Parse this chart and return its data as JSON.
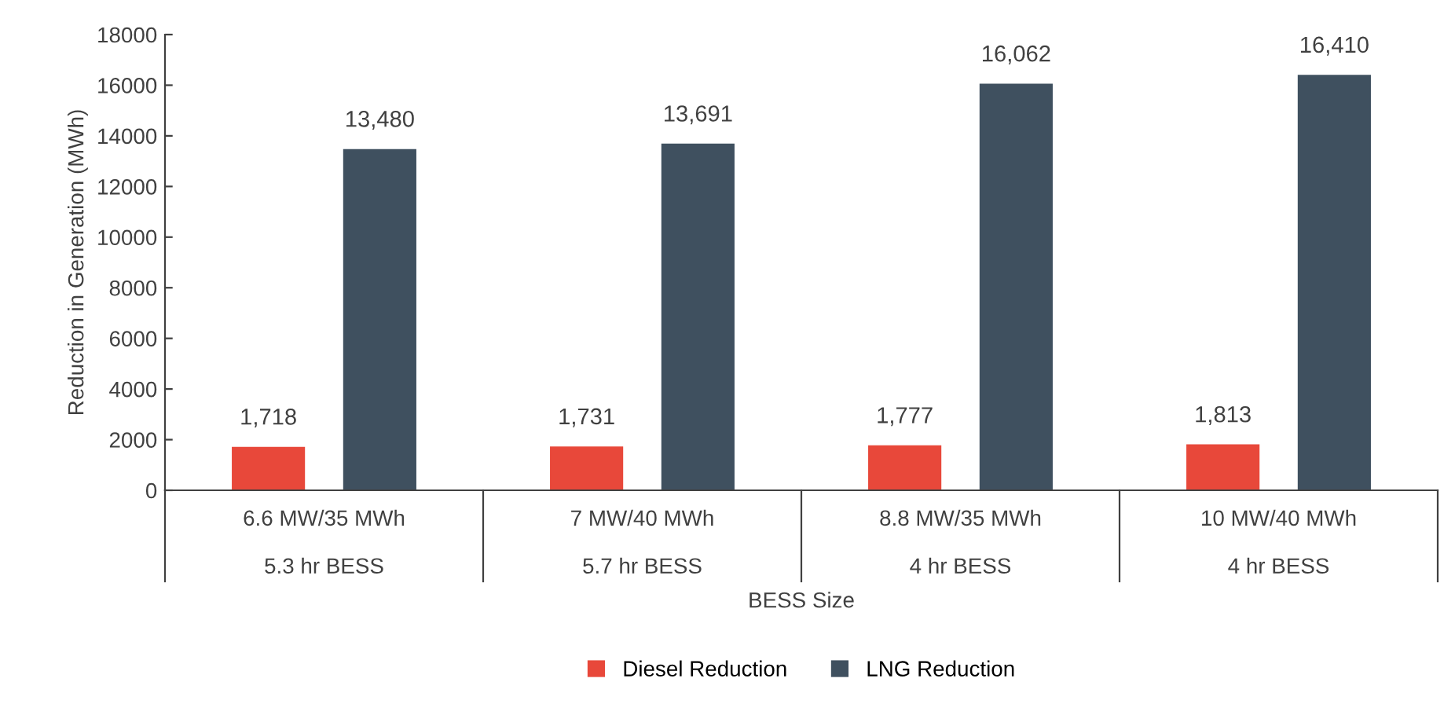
{
  "chart_data": {
    "type": "bar",
    "xlabel": "BESS Size",
    "ylabel": "Reduction in Generation (MWh)",
    "categories": [
      "6.6 MW/35 MWh\n5.3 hr BESS",
      "7 MW/40 MWh\n5.7 hr BESS",
      "8.8 MW/35 MWh\n4 hr BESS",
      "10 MW/40 MWh\n4 hr BESS"
    ],
    "series": [
      {
        "name": "Diesel Reduction",
        "color": "#e8483a",
        "values": [
          1718,
          1731,
          1777,
          1813
        ],
        "value_labels": [
          "1,718",
          "1,731",
          "1,777",
          "1,813"
        ]
      },
      {
        "name": "LNG Reduction",
        "color": "#3f505f",
        "values": [
          13480,
          13691,
          16062,
          16410
        ],
        "value_labels": [
          "13,480",
          "13,691",
          "16,062",
          "16,410"
        ]
      }
    ],
    "ylim": [
      0,
      18000
    ],
    "yticks": [
      0,
      2000,
      4000,
      6000,
      8000,
      10000,
      12000,
      14000,
      16000,
      18000
    ],
    "grid": false,
    "legend": "bottom"
  }
}
